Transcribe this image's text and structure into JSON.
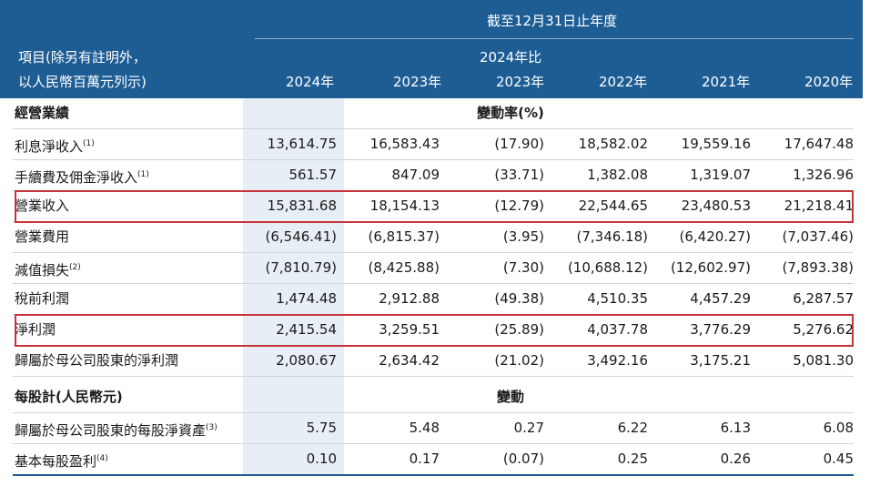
{
  "header": {
    "period": "截至12月31日止年度",
    "item_label_line1": "項目(除另有註明外，",
    "item_label_line2": "以人民幣百萬元列示)",
    "col_2024": "2024年",
    "col_2023": "2023年",
    "col_change_line1": "2024年比",
    "col_change_line2": "2023年",
    "col_2022": "2022年",
    "col_2021": "2021年",
    "col_2020": "2020年"
  },
  "sections": {
    "operating": {
      "title": "經營業績",
      "change_caption": "變動率(%)"
    },
    "per_share": {
      "title": "每股計(人民幣元)",
      "change_caption": "變動"
    }
  },
  "rows": [
    {
      "label": "利息淨收入",
      "note": "(1)",
      "values": [
        "13,614.75",
        "16,583.43",
        "(17.90)",
        "18,582.02",
        "19,559.16",
        "17,647.48"
      ]
    },
    {
      "label": "手續費及佣金淨收入",
      "note": "(1)",
      "values": [
        "561.57",
        "847.09",
        "(33.71)",
        "1,382.08",
        "1,319.07",
        "1,326.96"
      ]
    },
    {
      "label": "營業收入",
      "note": "",
      "values": [
        "15,831.68",
        "18,154.13",
        "(12.79)",
        "22,544.65",
        "23,480.53",
        "21,218.41"
      ]
    },
    {
      "label": "營業費用",
      "note": "",
      "values": [
        "(6,546.41)",
        "(6,815.37)",
        "(3.95)",
        "(7,346.18)",
        "(6,420.27)",
        "(7,037.46)"
      ]
    },
    {
      "label": "減值損失",
      "note": "(2)",
      "values": [
        "(7,810.79)",
        "(8,425.88)",
        "(7.30)",
        "(10,688.12)",
        "(12,602.97)",
        "(7,893.38)"
      ]
    },
    {
      "label": "稅前利潤",
      "note": "",
      "values": [
        "1,474.48",
        "2,912.88",
        "(49.38)",
        "4,510.35",
        "4,457.29",
        "6,287.57"
      ]
    },
    {
      "label": "淨利潤",
      "note": "",
      "values": [
        "2,415.54",
        "3,259.51",
        "(25.89)",
        "4,037.78",
        "3,776.29",
        "5,276.62"
      ]
    },
    {
      "label": "歸屬於母公司股東的淨利潤",
      "note": "",
      "values": [
        "2,080.67",
        "2,634.42",
        "(21.02)",
        "3,492.16",
        "3,175.21",
        "5,081.30"
      ]
    },
    {
      "label": "歸屬於母公司股東的每股淨資產",
      "note": "(3)",
      "values": [
        "5.75",
        "5.48",
        "0.27",
        "6.22",
        "6.13",
        "6.08"
      ]
    },
    {
      "label": "基本每股盈利",
      "note": "(4)",
      "values": [
        "0.10",
        "0.17",
        "(0.07)",
        "0.25",
        "0.26",
        "0.45"
      ]
    }
  ],
  "colors": {
    "header_bg": "#1e5d94",
    "highlight_col": "#e8eef6",
    "box_border": "#c8323a"
  }
}
